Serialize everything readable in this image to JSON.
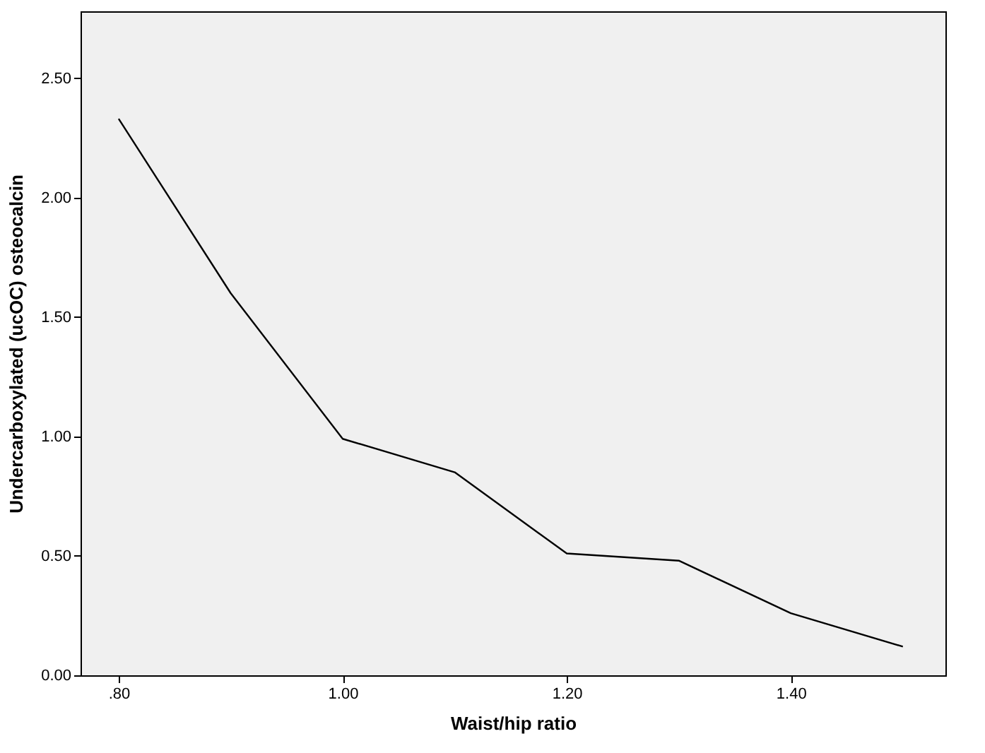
{
  "chart_data": {
    "type": "line",
    "xlabel": "Waist/hip ratio",
    "ylabel": "Undercarboxylated (ucOC) osteocalcin",
    "x": [
      0.8,
      0.9,
      1.0,
      1.1,
      1.2,
      1.3,
      1.4,
      1.5
    ],
    "series": [
      {
        "color": "#000000",
        "values": [
          2.33,
          1.6,
          0.99,
          0.85,
          0.51,
          0.48,
          0.26,
          0.12
        ]
      }
    ],
    "xlim": [
      0.766,
      1.538
    ],
    "ylim": [
      0,
      2.78
    ],
    "xticks": [
      {
        "value": 0.8,
        "label": ".80"
      },
      {
        "value": 1.0,
        "label": "1.00"
      },
      {
        "value": 1.2,
        "label": "1.20"
      },
      {
        "value": 1.4,
        "label": "1.40"
      }
    ],
    "yticks": [
      {
        "value": 0,
        "label": "0.00"
      },
      {
        "value": 0.5,
        "label": "0.50"
      },
      {
        "value": 1.0,
        "label": "1.00"
      },
      {
        "value": 1.5,
        "label": "1.50"
      },
      {
        "value": 2.0,
        "label": "2.00"
      },
      {
        "value": 2.5,
        "label": "2.50"
      }
    ],
    "grid": false,
    "marker": "none",
    "line_style": "solid"
  }
}
